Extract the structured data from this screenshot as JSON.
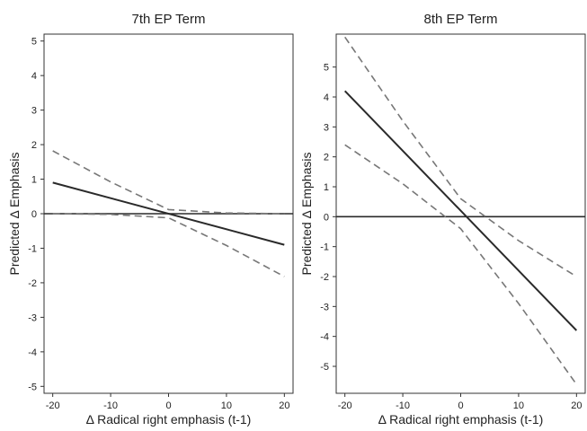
{
  "chart_data": [
    {
      "type": "line",
      "title": "7th EP Term",
      "xlabel": "Δ Radical right emphasis (t-1)",
      "ylabel": "Predicted Δ Emphasis",
      "xlim": [
        -21.5,
        21.5
      ],
      "ylim": [
        -5.2,
        5.2
      ],
      "x_ticks": [
        -20,
        -10,
        0,
        10,
        20
      ],
      "y_ticks": [
        -5,
        -4,
        -3,
        -2,
        -1,
        0,
        1,
        2,
        3,
        4,
        5
      ],
      "grid": false,
      "legend": "none",
      "reference_line_y": 0,
      "series": [
        {
          "style": "solid",
          "x": [
            -20,
            20
          ],
          "y": [
            0.9,
            -0.9
          ]
        },
        {
          "style": "dashed",
          "x": [
            -20,
            -10,
            0,
            10,
            20
          ],
          "y": [
            1.82,
            0.92,
            0.12,
            0.02,
            0.0
          ]
        },
        {
          "style": "dashed",
          "x": [
            -20,
            -10,
            0,
            10,
            20
          ],
          "y": [
            0.0,
            -0.02,
            -0.12,
            -0.92,
            -1.82
          ]
        }
      ]
    },
    {
      "type": "line",
      "title": "8th EP Term",
      "xlabel": "Δ Radical right emphasis (t-1)",
      "ylabel": "Predicted Δ Emphasis",
      "xlim": [
        -21.5,
        21.5
      ],
      "ylim": [
        -5.9,
        6.1
      ],
      "x_ticks": [
        -20,
        -10,
        0,
        10,
        20
      ],
      "y_ticks": [
        -5,
        -4,
        -3,
        -2,
        -1,
        0,
        1,
        2,
        3,
        4,
        5
      ],
      "grid": false,
      "legend": "none",
      "reference_line_y": 0,
      "series": [
        {
          "style": "solid",
          "x": [
            -20,
            20
          ],
          "y": [
            4.2,
            -3.8
          ]
        },
        {
          "style": "dashed",
          "x": [
            -20,
            -10,
            0,
            10,
            20
          ],
          "y": [
            6.0,
            3.2,
            0.6,
            -0.8,
            -2.0
          ]
        },
        {
          "style": "dashed",
          "x": [
            -20,
            -10,
            0,
            10,
            20
          ],
          "y": [
            2.4,
            1.1,
            -0.4,
            -2.9,
            -5.6
          ]
        }
      ]
    }
  ]
}
